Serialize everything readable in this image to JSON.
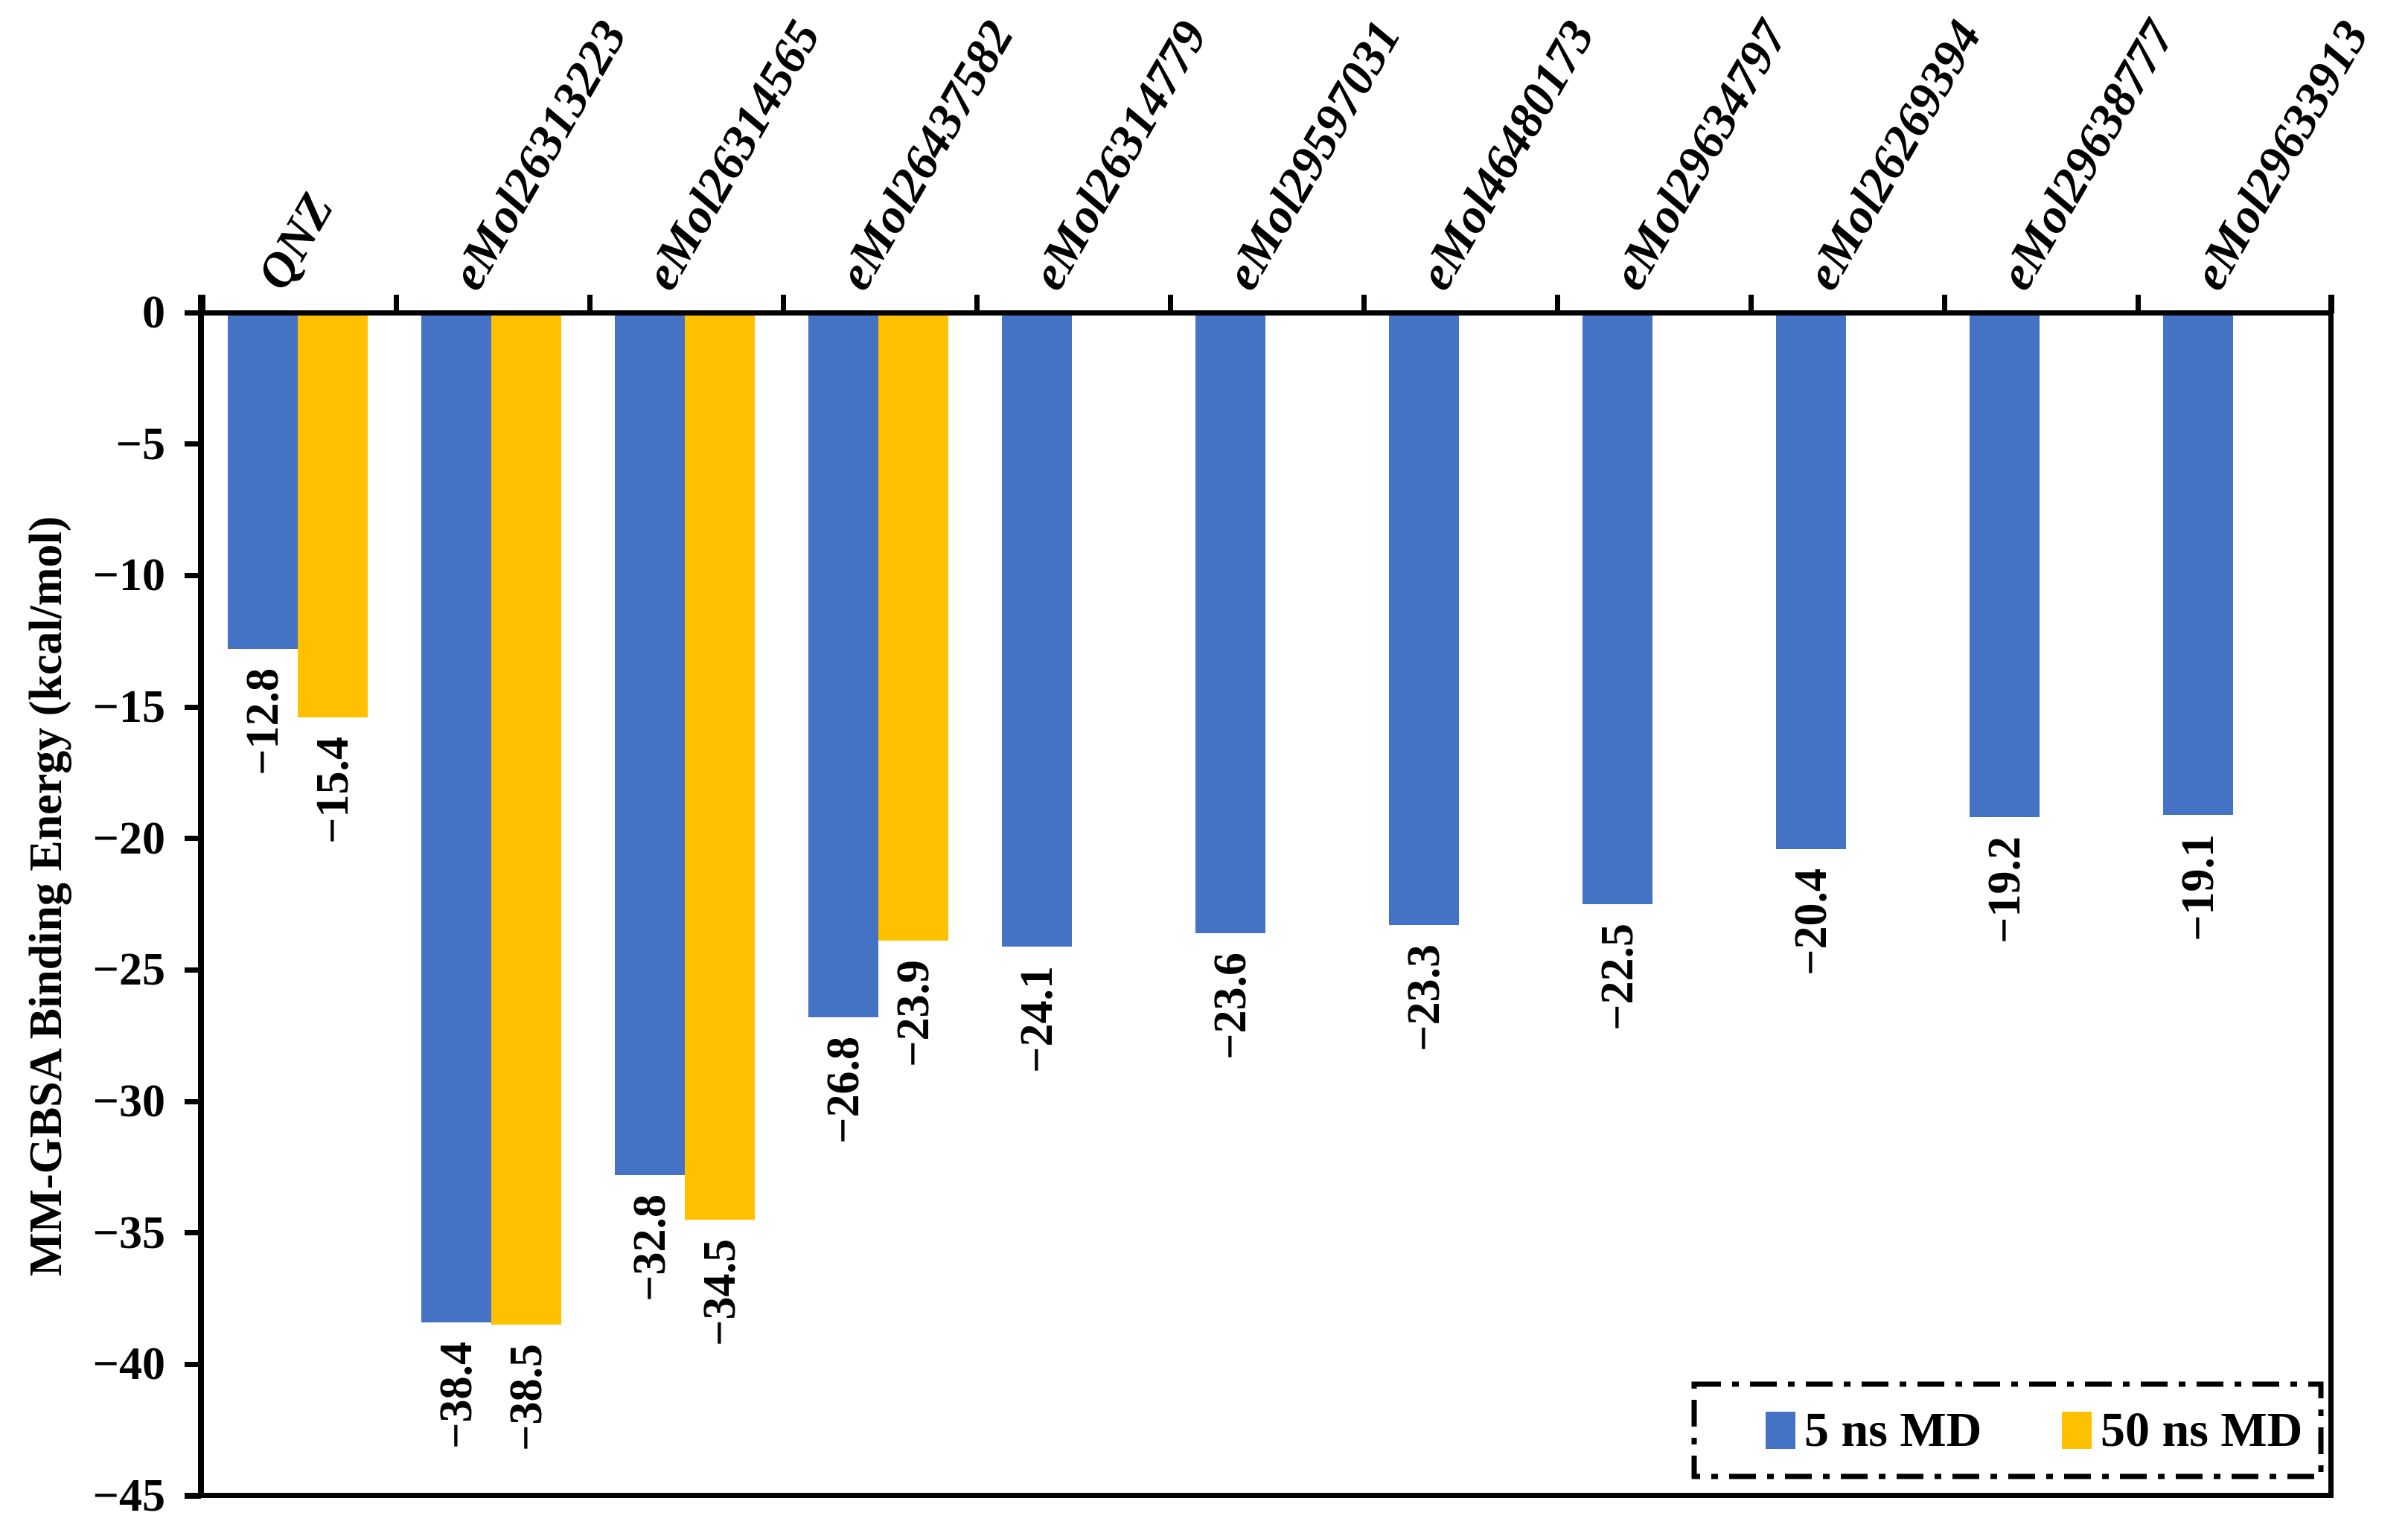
{
  "chart_data": {
    "type": "bar",
    "title": "",
    "xlabel": "",
    "ylabel": "MM-GBSA Binding Energy (kcal/mol)",
    "ylim": [
      -45,
      0
    ],
    "ytick_interval": 5,
    "ytick_labels": [
      "0",
      "−5",
      "−10",
      "−15",
      "−20",
      "−25",
      "−30",
      "−35",
      "−40",
      "−45"
    ],
    "grid": false,
    "bar_value_labels": true,
    "legend_position": "bottom-right",
    "legend_border": "dash-dot",
    "categories": [
      "QNZ",
      "eMol26313223",
      "eMol26314565",
      "eMol26437582",
      "eMol26314779",
      "eMol29597031",
      "eMol46480173",
      "eMol29634797",
      "eMol26269394",
      "eMol29638777",
      "eMol29633913"
    ],
    "series": [
      {
        "name": "5 ns MD",
        "color": "#4472C4",
        "values": [
          -12.8,
          -38.4,
          -32.8,
          -26.8,
          -24.1,
          -23.6,
          -23.3,
          -22.5,
          -20.4,
          -19.2,
          -19.1
        ]
      },
      {
        "name": "50 ns MD",
        "color": "#FFC000",
        "values": [
          -15.4,
          -38.5,
          -34.5,
          -23.9,
          null,
          null,
          null,
          null,
          null,
          null,
          null
        ]
      }
    ],
    "axis_color": "#000000",
    "text_color": "#000000"
  }
}
